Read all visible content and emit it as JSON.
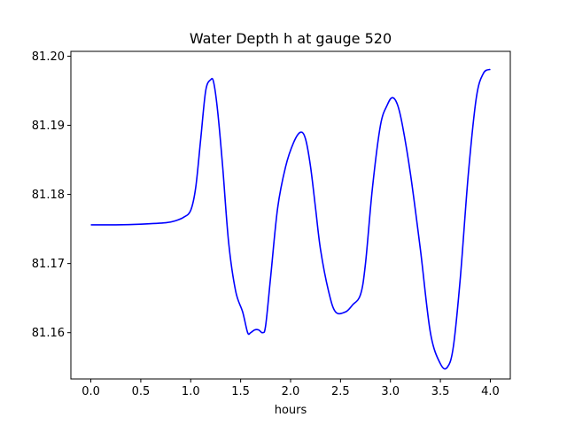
{
  "chart_data": {
    "type": "line",
    "title": "Water Depth h at gauge 520",
    "xlabel": "hours",
    "ylabel": "",
    "xlim": [
      -0.2,
      4.2
    ],
    "ylim": [
      81.1533,
      81.2007
    ],
    "xticks": [
      0.0,
      0.5,
      1.0,
      1.5,
      2.0,
      2.5,
      3.0,
      3.5,
      4.0
    ],
    "xtick_labels": [
      "0.0",
      "0.5",
      "1.0",
      "1.5",
      "2.0",
      "2.5",
      "3.0",
      "3.5",
      "4.0"
    ],
    "yticks": [
      81.16,
      81.17,
      81.18,
      81.19,
      81.2
    ],
    "ytick_labels": [
      "81.16",
      "81.17",
      "81.18",
      "81.19",
      "81.20"
    ],
    "grid": false,
    "legend": false,
    "series": [
      {
        "color": "#0000ff",
        "x": [
          0.0,
          0.25,
          0.5,
          0.75,
          0.85,
          0.93,
          1.0,
          1.05,
          1.1,
          1.15,
          1.2,
          1.23,
          1.27,
          1.32,
          1.38,
          1.45,
          1.52,
          1.57,
          1.6,
          1.64,
          1.68,
          1.72,
          1.75,
          1.8,
          1.87,
          1.95,
          2.03,
          2.1,
          2.15,
          2.2,
          2.25,
          2.3,
          2.38,
          2.45,
          2.55,
          2.62,
          2.7,
          2.75,
          2.82,
          2.9,
          2.97,
          3.02,
          3.07,
          3.12,
          3.2,
          3.3,
          3.4,
          3.5,
          3.57,
          3.63,
          3.7,
          3.78,
          3.86,
          3.93,
          4.0
        ],
        "y": [
          81.1756,
          81.1756,
          81.1757,
          81.1759,
          81.1762,
          81.1767,
          81.1777,
          81.181,
          81.188,
          81.195,
          81.1966,
          81.1962,
          81.192,
          81.184,
          81.173,
          81.166,
          81.163,
          81.16,
          81.16,
          81.1604,
          81.1604,
          81.16,
          81.161,
          81.168,
          81.178,
          81.184,
          81.1875,
          81.189,
          81.188,
          81.184,
          81.178,
          81.172,
          81.166,
          81.163,
          81.163,
          81.164,
          81.1655,
          81.17,
          81.181,
          81.19,
          81.193,
          81.194,
          81.193,
          81.19,
          81.183,
          81.172,
          81.16,
          81.1555,
          81.155,
          81.158,
          81.168,
          81.183,
          81.194,
          81.1975,
          81.1981
        ]
      }
    ]
  }
}
